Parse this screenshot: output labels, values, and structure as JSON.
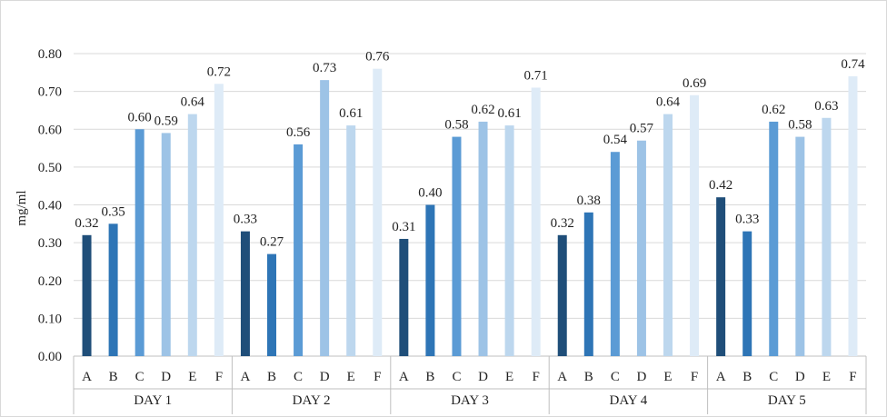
{
  "chart_data": {
    "type": "bar",
    "ylabel": "mg/ml",
    "ylim": [
      0,
      0.8
    ],
    "yticks": [
      "0.00",
      "0.10",
      "0.20",
      "0.30",
      "0.40",
      "0.50",
      "0.60",
      "0.70",
      "0.80"
    ],
    "grid": true,
    "groups": [
      {
        "label": "DAY 1",
        "categories": [
          "A",
          "B",
          "C",
          "D",
          "E",
          "F"
        ],
        "values": [
          0.32,
          0.35,
          0.6,
          0.59,
          0.64,
          0.72
        ]
      },
      {
        "label": "DAY 2",
        "categories": [
          "A",
          "B",
          "C",
          "D",
          "E",
          "F"
        ],
        "values": [
          0.33,
          0.27,
          0.56,
          0.73,
          0.61,
          0.76
        ]
      },
      {
        "label": "DAY 3",
        "categories": [
          "A",
          "B",
          "C",
          "D",
          "E",
          "F"
        ],
        "values": [
          0.31,
          0.4,
          0.58,
          0.62,
          0.61,
          0.71
        ]
      },
      {
        "label": "DAY 4",
        "categories": [
          "A",
          "B",
          "C",
          "D",
          "E",
          "F"
        ],
        "values": [
          0.32,
          0.38,
          0.54,
          0.57,
          0.64,
          0.69
        ]
      },
      {
        "label": "DAY 5",
        "categories": [
          "A",
          "B",
          "C",
          "D",
          "E",
          "F"
        ],
        "values": [
          0.42,
          0.33,
          0.62,
          0.58,
          0.63,
          0.74
        ]
      }
    ],
    "category_colors": {
      "A": "#1f4e79",
      "B": "#2e75b6",
      "C": "#5b9bd5",
      "D": "#9dc3e6",
      "E": "#bdd7ee",
      "F": "#deebf7"
    }
  }
}
